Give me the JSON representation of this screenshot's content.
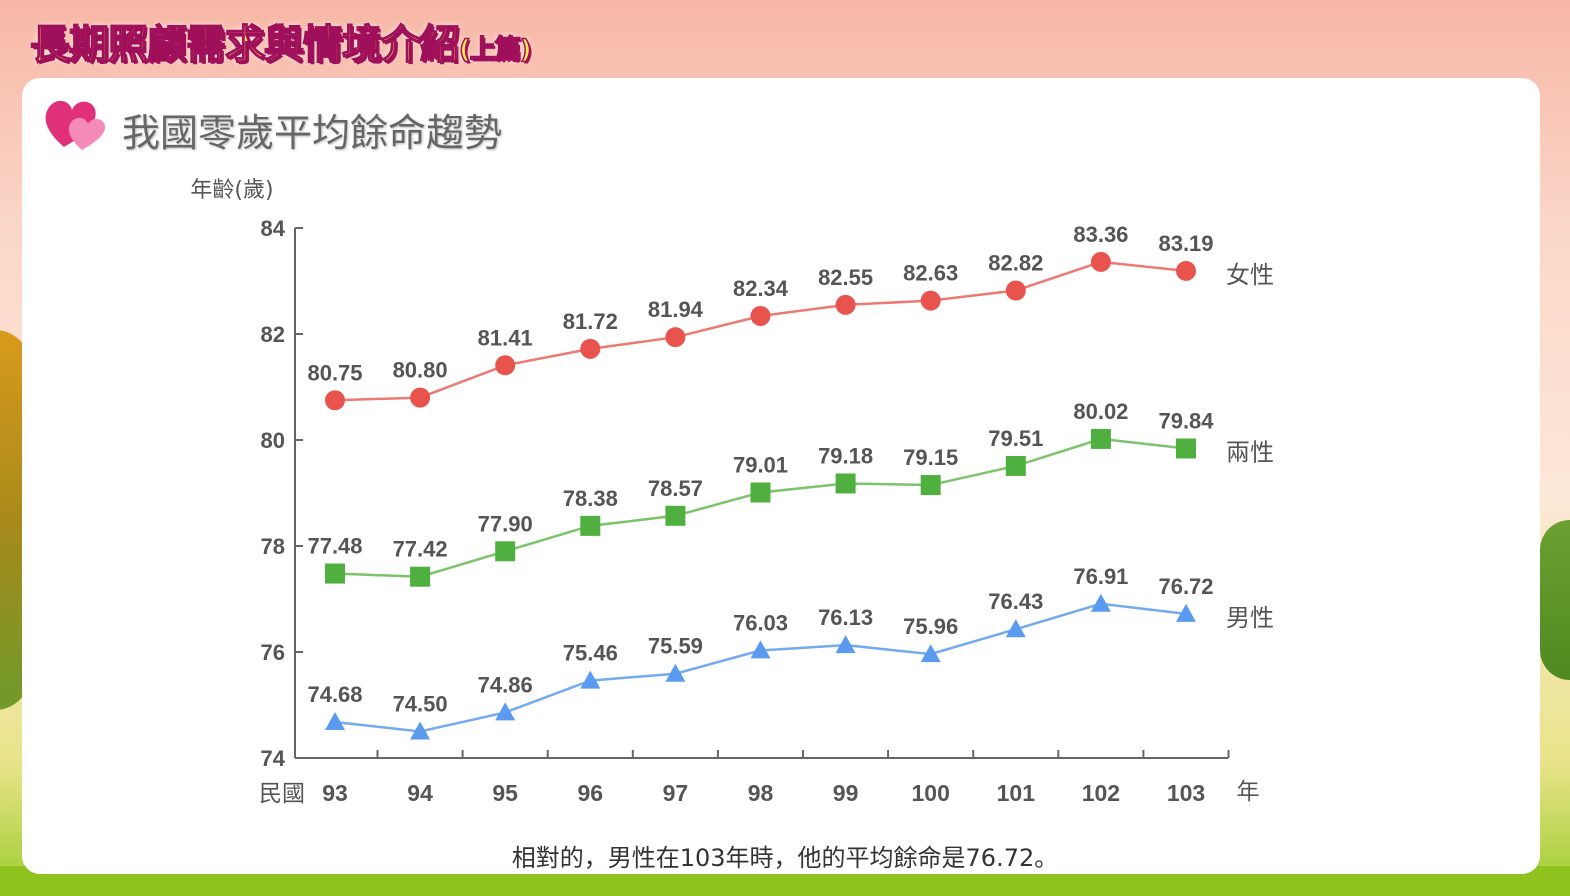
{
  "header": {
    "title": "長期照顧需求與情境介紹",
    "title_suffix": "(上篇)"
  },
  "section": {
    "title": "我國零歲平均餘命趨勢"
  },
  "footer": {
    "text": "相對的，男性在103年時，他的平均餘命是76.72。"
  },
  "chart_data": {
    "type": "line",
    "title": "我國零歲平均餘命趨勢",
    "ylabel": "年齡(歲)",
    "xlabel_prefix": "民國",
    "xlabel_suffix": "年",
    "x": [
      "93",
      "94",
      "95",
      "96",
      "97",
      "98",
      "99",
      "100",
      "101",
      "102",
      "103"
    ],
    "ylim": [
      74,
      84
    ],
    "yticks": [
      74,
      76,
      78,
      80,
      82,
      84
    ],
    "series": [
      {
        "name": "女性",
        "color": "#e8544d",
        "line": "#ec7a72",
        "marker": "circle",
        "values": [
          80.75,
          80.8,
          81.41,
          81.72,
          81.94,
          82.34,
          82.55,
          82.63,
          82.82,
          83.36,
          83.19
        ]
      },
      {
        "name": "兩性",
        "color": "#4fb040",
        "line": "#7cc46c",
        "marker": "square",
        "values": [
          77.48,
          77.42,
          77.9,
          78.38,
          78.57,
          79.01,
          79.18,
          79.15,
          79.51,
          80.02,
          79.84
        ]
      },
      {
        "name": "男性",
        "color": "#5b9bef",
        "line": "#74aaf0",
        "marker": "triangle",
        "values": [
          74.68,
          74.5,
          74.86,
          75.46,
          75.59,
          76.03,
          76.13,
          75.96,
          76.43,
          76.91,
          76.72
        ]
      }
    ]
  }
}
